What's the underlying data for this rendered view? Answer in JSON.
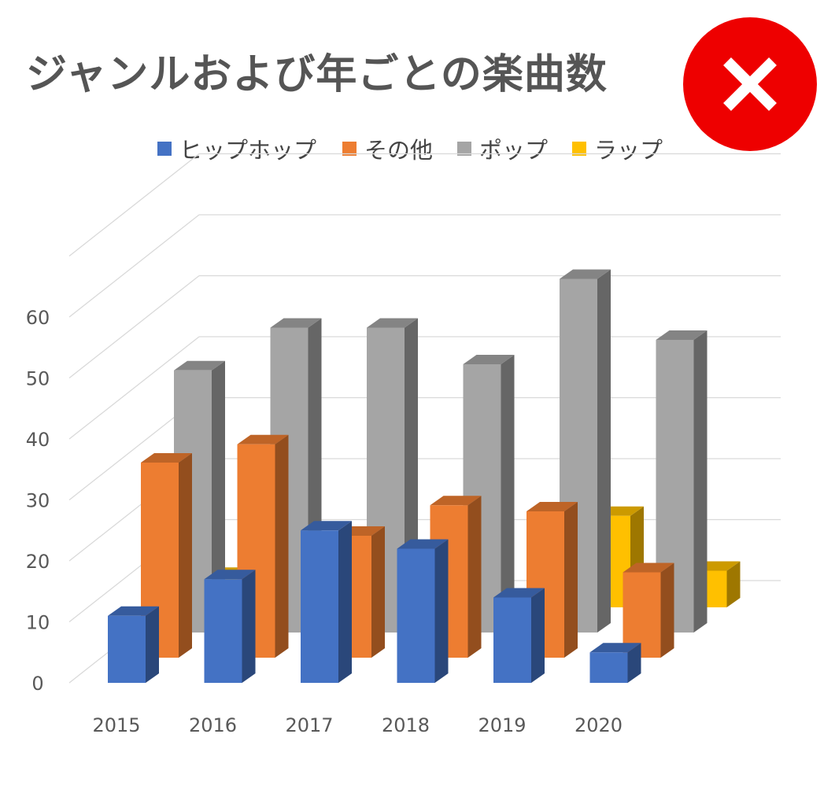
{
  "chart_data": {
    "type": "bar",
    "variant": "3d-clustered-column",
    "title": "ジャンルおよび年ごとの楽曲数",
    "categories": [
      "2015",
      "2016",
      "2017",
      "2018",
      "2019",
      "2020"
    ],
    "series": [
      {
        "name": "ヒップホップ",
        "color": "#4472c4",
        "values": [
          11,
          17,
          25,
          22,
          14,
          5
        ]
      },
      {
        "name": "その他",
        "color": "#ed7d31",
        "values": [
          32,
          35,
          20,
          25,
          24,
          14
        ]
      },
      {
        "name": "ポップ",
        "color": "#a5a5a5",
        "values": [
          43,
          50,
          50,
          44,
          58,
          48
        ]
      },
      {
        "name": "ラップ",
        "color": "#ffc000",
        "values": [
          5,
          0,
          0,
          0,
          15,
          6
        ]
      }
    ],
    "yticks": [
      "0",
      "10",
      "20",
      "30",
      "40",
      "50",
      "60"
    ],
    "ylim": [
      0,
      60
    ],
    "grid": true,
    "legend_position": "top"
  },
  "close_button": {
    "icon": "close-icon",
    "color": "#ee0000"
  }
}
